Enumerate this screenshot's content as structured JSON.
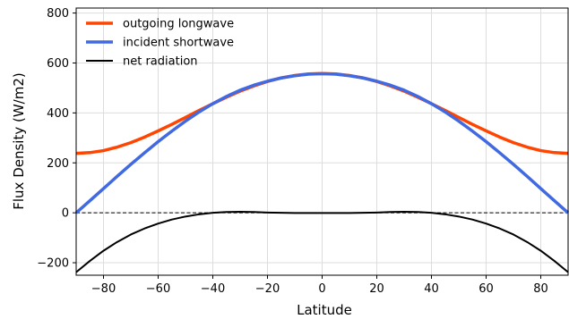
{
  "chart_data": {
    "type": "line",
    "title": "",
    "xlabel": "Latitude",
    "ylabel": "Flux Density (W/m2)",
    "xlim": [
      -90,
      90
    ],
    "ylim": [
      -250,
      820
    ],
    "xticks": [
      -80,
      -60,
      -40,
      -20,
      0,
      20,
      40,
      60,
      80
    ],
    "yticks": [
      -200,
      0,
      200,
      400,
      600,
      800
    ],
    "xtick_labels": [
      "−80",
      "−60",
      "−40",
      "−20",
      "0",
      "20",
      "40",
      "60",
      "80"
    ],
    "ytick_labels": [
      "−200",
      "0",
      "200",
      "400",
      "600",
      "800"
    ],
    "grid": true,
    "legend_position": "top-left",
    "zero_line": {
      "y": 0,
      "style": "dashed",
      "color": "#000000"
    },
    "x": [
      -90,
      -85,
      -80,
      -75,
      -70,
      -65,
      -60,
      -55,
      -50,
      -45,
      -40,
      -35,
      -30,
      -25,
      -20,
      -15,
      -10,
      -5,
      0,
      5,
      10,
      15,
      20,
      25,
      30,
      35,
      40,
      45,
      50,
      55,
      60,
      65,
      70,
      75,
      80,
      85,
      90
    ],
    "series": [
      {
        "name": "outgoing longwave",
        "color": "#ff4500",
        "width": 3.5,
        "values": [
          238,
          241,
          249,
          263,
          281,
          303,
          328,
          354,
          382,
          410,
          437,
          463,
          487,
          508,
          526,
          540,
          550,
          556,
          558,
          556,
          550,
          540,
          526,
          508,
          487,
          463,
          437,
          410,
          382,
          354,
          328,
          303,
          281,
          263,
          249,
          241,
          238
        ]
      },
      {
        "name": "incident shortwave",
        "color": "#4169e1",
        "width": 3.5,
        "values": [
          0,
          48,
          97,
          146,
          194,
          240,
          285,
          327,
          367,
          404,
          437,
          466,
          491,
          511,
          527,
          540,
          549,
          555,
          557,
          555,
          549,
          540,
          527,
          511,
          491,
          466,
          437,
          404,
          367,
          327,
          285,
          240,
          194,
          146,
          97,
          48,
          0
        ]
      },
      {
        "name": "net radiation",
        "color": "#000000",
        "width": 2,
        "values": [
          -238,
          -193,
          -152,
          -117,
          -87,
          -63,
          -43,
          -27,
          -15,
          -6,
          0,
          3,
          4,
          3,
          1,
          0,
          -1,
          -1,
          -1,
          -1,
          -1,
          0,
          1,
          3,
          4,
          3,
          0,
          -6,
          -15,
          -27,
          -43,
          -63,
          -87,
          -117,
          -152,
          -193,
          -238
        ]
      }
    ]
  }
}
